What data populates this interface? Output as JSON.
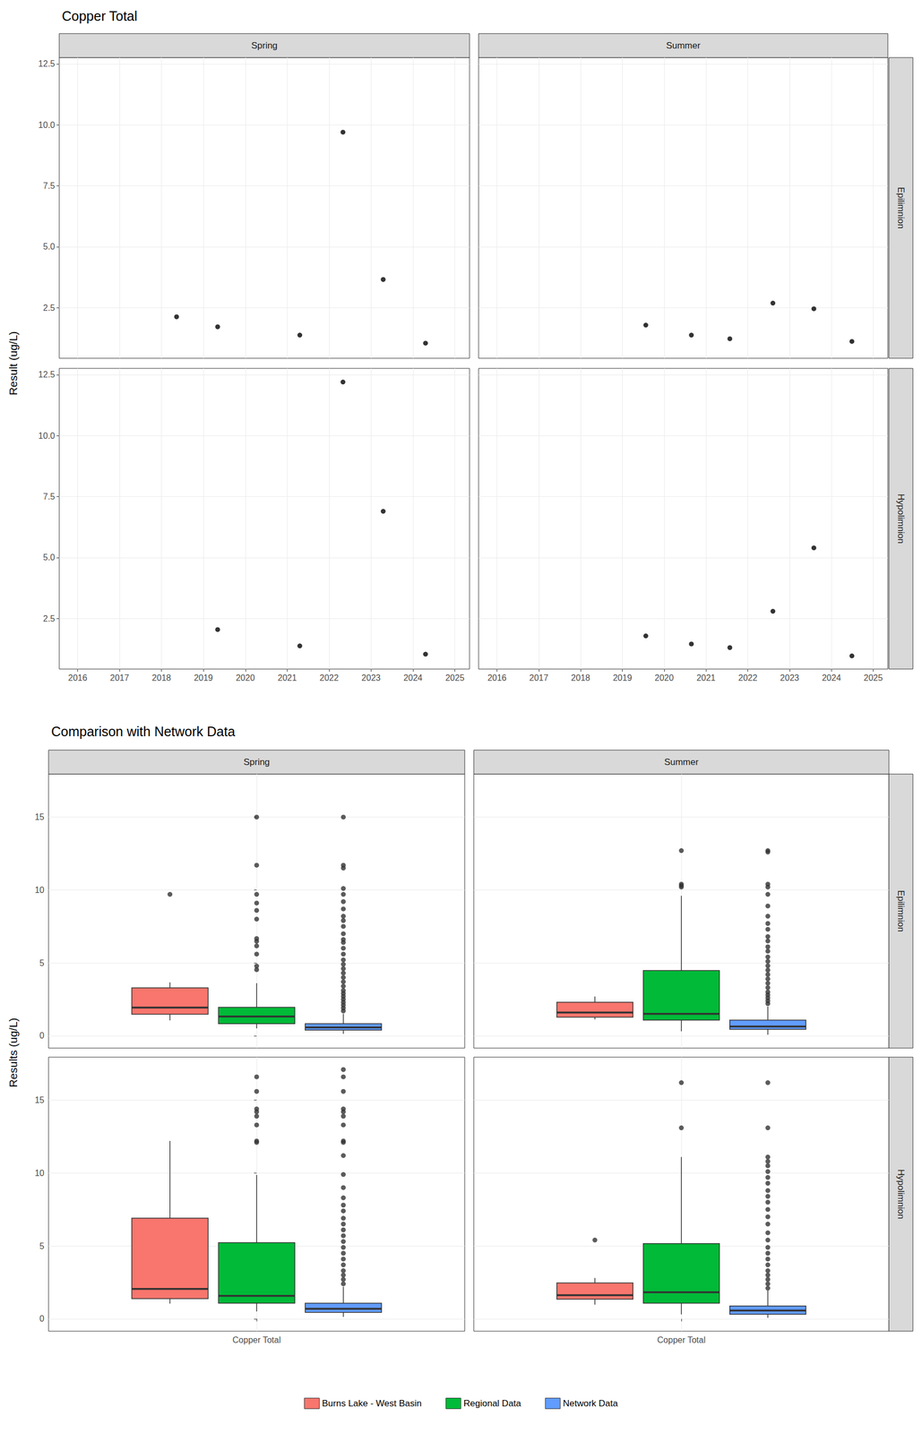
{
  "chart_data": [
    {
      "type": "scatter",
      "title": "Copper Total",
      "ylabel": "Result (ug/L)",
      "columns": [
        "Spring",
        "Summer"
      ],
      "rows": [
        "Epilimnion",
        "Hypolimnion"
      ],
      "color": "#000000",
      "marker": "circle",
      "panels": [
        {
          "column": "Spring",
          "row": "Epilimnion",
          "x": [
            2018.36,
            2019.34,
            2021.3,
            2022.33,
            2023.29,
            2024.3
          ],
          "values": [
            2.13,
            1.72,
            1.38,
            9.7,
            3.66,
            1.05
          ]
        },
        {
          "column": "Summer",
          "row": "Epilimnion",
          "x": [
            2019.56,
            2020.65,
            2021.57,
            2022.6,
            2023.58,
            2024.49
          ],
          "values": [
            1.79,
            1.38,
            1.23,
            2.69,
            2.46,
            1.12
          ]
        },
        {
          "column": "Spring",
          "row": "Hypolimnion",
          "x": [
            2019.34,
            2021.3,
            2022.33,
            2023.29,
            2024.3
          ],
          "values": [
            2.05,
            1.38,
            12.2,
            6.9,
            1.04
          ]
        },
        {
          "column": "Summer",
          "row": "Hypolimnion",
          "x": [
            2019.56,
            2020.65,
            2021.57,
            2022.6,
            2023.58,
            2024.49
          ],
          "values": [
            1.79,
            1.46,
            1.31,
            2.8,
            5.4,
            0.97
          ]
        }
      ],
      "xlim": [
        2015.56,
        2025.35
      ],
      "xticks": [
        2016,
        2017,
        2018,
        2019,
        2020,
        2021,
        2022,
        2023,
        2024,
        2025
      ],
      "ylim": [
        0.43,
        12.76
      ],
      "yticks": [
        2.5,
        {
          "value": 5,
          "label": "5.0"
        },
        7.5,
        {
          "value": 10,
          "label": "10.0"
        },
        12.5
      ],
      "grid": true
    },
    {
      "type": "boxplot",
      "title": "Comparison with Network Data",
      "ylabel": "Results (ug/L)",
      "categories": [
        "Copper Total"
      ],
      "columns": [
        "Spring",
        "Summer"
      ],
      "rows": [
        "Epilimnion",
        "Hypolimnion"
      ],
      "series": [
        {
          "name": "Burns Lake - West Basin",
          "color": "#F8766D",
          "panels": [
            {
              "column": "Spring",
              "row": "Epilimnion",
              "box": [
                1.05,
                1.47,
                1.93,
                3.28,
                3.66
              ],
              "outliers": [
                9.7
              ]
            },
            {
              "column": "Summer",
              "row": "Epilimnion",
              "box": [
                1.12,
                1.27,
                1.59,
                2.3,
                2.69
              ],
              "outliers": []
            },
            {
              "column": "Spring",
              "row": "Hypolimnion",
              "box": [
                1.04,
                1.38,
                2.05,
                6.9,
                12.2
              ],
              "outliers": []
            },
            {
              "column": "Summer",
              "row": "Hypolimnion",
              "box": [
                0.97,
                1.34,
                1.62,
                2.46,
                2.8
              ],
              "outliers": [
                5.4
              ]
            }
          ]
        },
        {
          "name": "Regional Data",
          "color": "#00BA38",
          "panels": [
            {
              "column": "Spring",
              "row": "Epilimnion",
              "box": [
                0.5,
                0.82,
                1.32,
                1.95,
                3.6
              ],
              "outliers": [
                15,
                11.7,
                9.7,
                9.1,
                8.6,
                8.0,
                6.67,
                6.48,
                6.16,
                5.6,
                4.78,
                4.53
              ]
            },
            {
              "column": "Summer",
              "row": "Epilimnion",
              "box": [
                0.3,
                1.07,
                1.5,
                4.47,
                9.6
              ],
              "outliers": [
                12.7,
                10.4,
                10.3,
                10.2
              ]
            },
            {
              "column": "Spring",
              "row": "Hypolimnion",
              "box": [
                0.5,
                1.07,
                1.57,
                5.22,
                9.87
              ],
              "outliers": [
                16.6,
                15.6,
                14.4,
                14.2,
                13.9,
                13.3,
                12.2,
                12.1
              ]
            },
            {
              "column": "Summer",
              "row": "Hypolimnion",
              "box": [
                0.3,
                1.07,
                1.82,
                5.16,
                11.1
              ],
              "outliers": [
                16.2,
                13.1
              ]
            }
          ]
        },
        {
          "name": "Network Data",
          "color": "#619CFF",
          "panels": [
            {
              "column": "Spring",
              "row": "Epilimnion",
              "box": [
                0.13,
                0.38,
                0.57,
                0.82,
                1.5
              ],
              "outliers": [
                15,
                11.7,
                11.5,
                10.1,
                9.7,
                9.2,
                8.7,
                8.2,
                7.9,
                7.5,
                7.0,
                6.6,
                6.4,
                6.0,
                5.6,
                5.2,
                4.9,
                4.6,
                4.3,
                4.0,
                3.7,
                3.4,
                3.1,
                2.9,
                2.7,
                2.5,
                2.3,
                2.1,
                1.9,
                1.7
              ]
            },
            {
              "column": "Summer",
              "row": "Epilimnion",
              "box": [
                0.06,
                0.44,
                0.63,
                1.07,
                2.0
              ],
              "outliers": [
                12.7,
                12.6,
                10.4,
                10.2,
                9.7,
                8.9,
                8.2,
                7.7,
                7.3,
                6.8,
                6.5,
                6.1,
                5.8,
                5.4,
                5.1,
                4.8,
                4.5,
                4.2,
                3.9,
                3.6,
                3.3,
                3.0,
                2.8,
                2.6,
                2.4,
                2.2
              ]
            },
            {
              "column": "Spring",
              "row": "Hypolimnion",
              "box": [
                0.13,
                0.44,
                0.69,
                1.07,
                2.2
              ],
              "outliers": [
                17.1,
                16.6,
                15.6,
                14.4,
                14.2,
                13.9,
                13.3,
                12.2,
                12.1,
                11.2,
                9.9,
                9.0,
                8.3,
                7.8,
                7.4,
                6.9,
                6.5,
                6.1,
                5.7,
                5.3,
                4.9,
                4.5,
                4.1,
                3.7,
                3.3,
                3.0,
                2.7,
                2.4
              ]
            },
            {
              "column": "Summer",
              "row": "Hypolimnion",
              "box": [
                0.06,
                0.31,
                0.57,
                0.88,
                1.95
              ],
              "outliers": [
                16.2,
                13.1,
                11.1,
                10.8,
                10.5,
                10.1,
                9.7,
                9.3,
                8.8,
                8.4,
                8.0,
                7.5,
                7.0,
                6.5,
                5.9,
                5.4,
                4.9,
                4.5,
                4.1,
                3.7,
                3.3,
                3.0,
                2.7,
                2.4,
                2.1
              ]
            }
          ]
        }
      ],
      "ylim": [
        -0.85,
        17.95
      ],
      "yticks": [
        0,
        5,
        10,
        15
      ],
      "grid": true,
      "legend": "bottom"
    }
  ]
}
